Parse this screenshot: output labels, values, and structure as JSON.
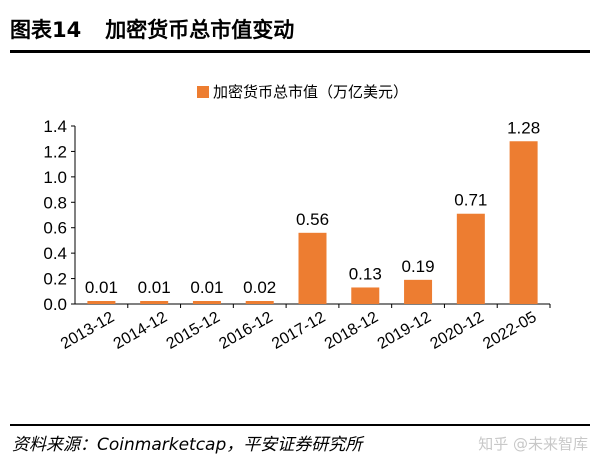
{
  "figure": {
    "number": "图表14",
    "title": "加密货币总市值变动",
    "source": "资料来源：Coinmarketcap，平安证券研究所",
    "watermark": "知乎 @未来智库"
  },
  "colors": {
    "bar": "#ED7D31",
    "axis": "#000000"
  },
  "chart_data": {
    "type": "bar",
    "title": "加密货币总市值变动",
    "legend": "加密货币总市值（万亿美元）",
    "legend_position": "top-center",
    "categories": [
      "2013-12",
      "2014-12",
      "2015-12",
      "2016-12",
      "2017-12",
      "2018-12",
      "2019-12",
      "2020-12",
      "2022-05"
    ],
    "values": [
      0.01,
      0.01,
      0.01,
      0.02,
      0.56,
      0.13,
      0.19,
      0.71,
      1.28
    ],
    "value_labels": [
      "0.01",
      "0.01",
      "0.01",
      "0.02",
      "0.56",
      "0.13",
      "0.19",
      "0.71",
      "1.28"
    ],
    "yticks": [
      "0.0",
      "0.2",
      "0.4",
      "0.6",
      "0.8",
      "1.0",
      "1.2",
      "1.4"
    ],
    "ylim": [
      0,
      1.4
    ],
    "xlabel": "",
    "ylabel": "",
    "grid": false
  }
}
